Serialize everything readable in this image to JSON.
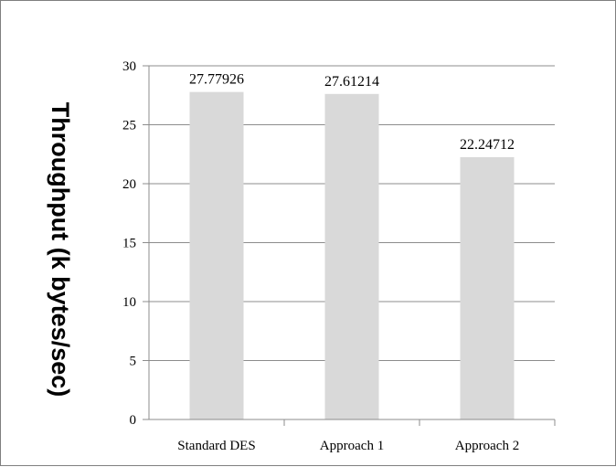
{
  "chart_data": {
    "type": "bar",
    "categories": [
      "Standard DES",
      "Approach 1",
      "Approach 2"
    ],
    "values": [
      27.77926,
      27.61214,
      22.24712
    ],
    "data_labels": [
      "27.77926",
      "27.61214",
      "22.24712"
    ],
    "title": "",
    "xlabel": "",
    "ylabel": "Throughput (k bytes/sec)",
    "ylim": [
      0,
      30
    ],
    "yticks": [
      0,
      5,
      10,
      15,
      20,
      25,
      30
    ],
    "grid": true,
    "legend": "none",
    "colors": {
      "bar": "#d9d9d9",
      "grid": "#8c8c8c",
      "axis": "#8c8c8c",
      "text": "#000000"
    }
  }
}
